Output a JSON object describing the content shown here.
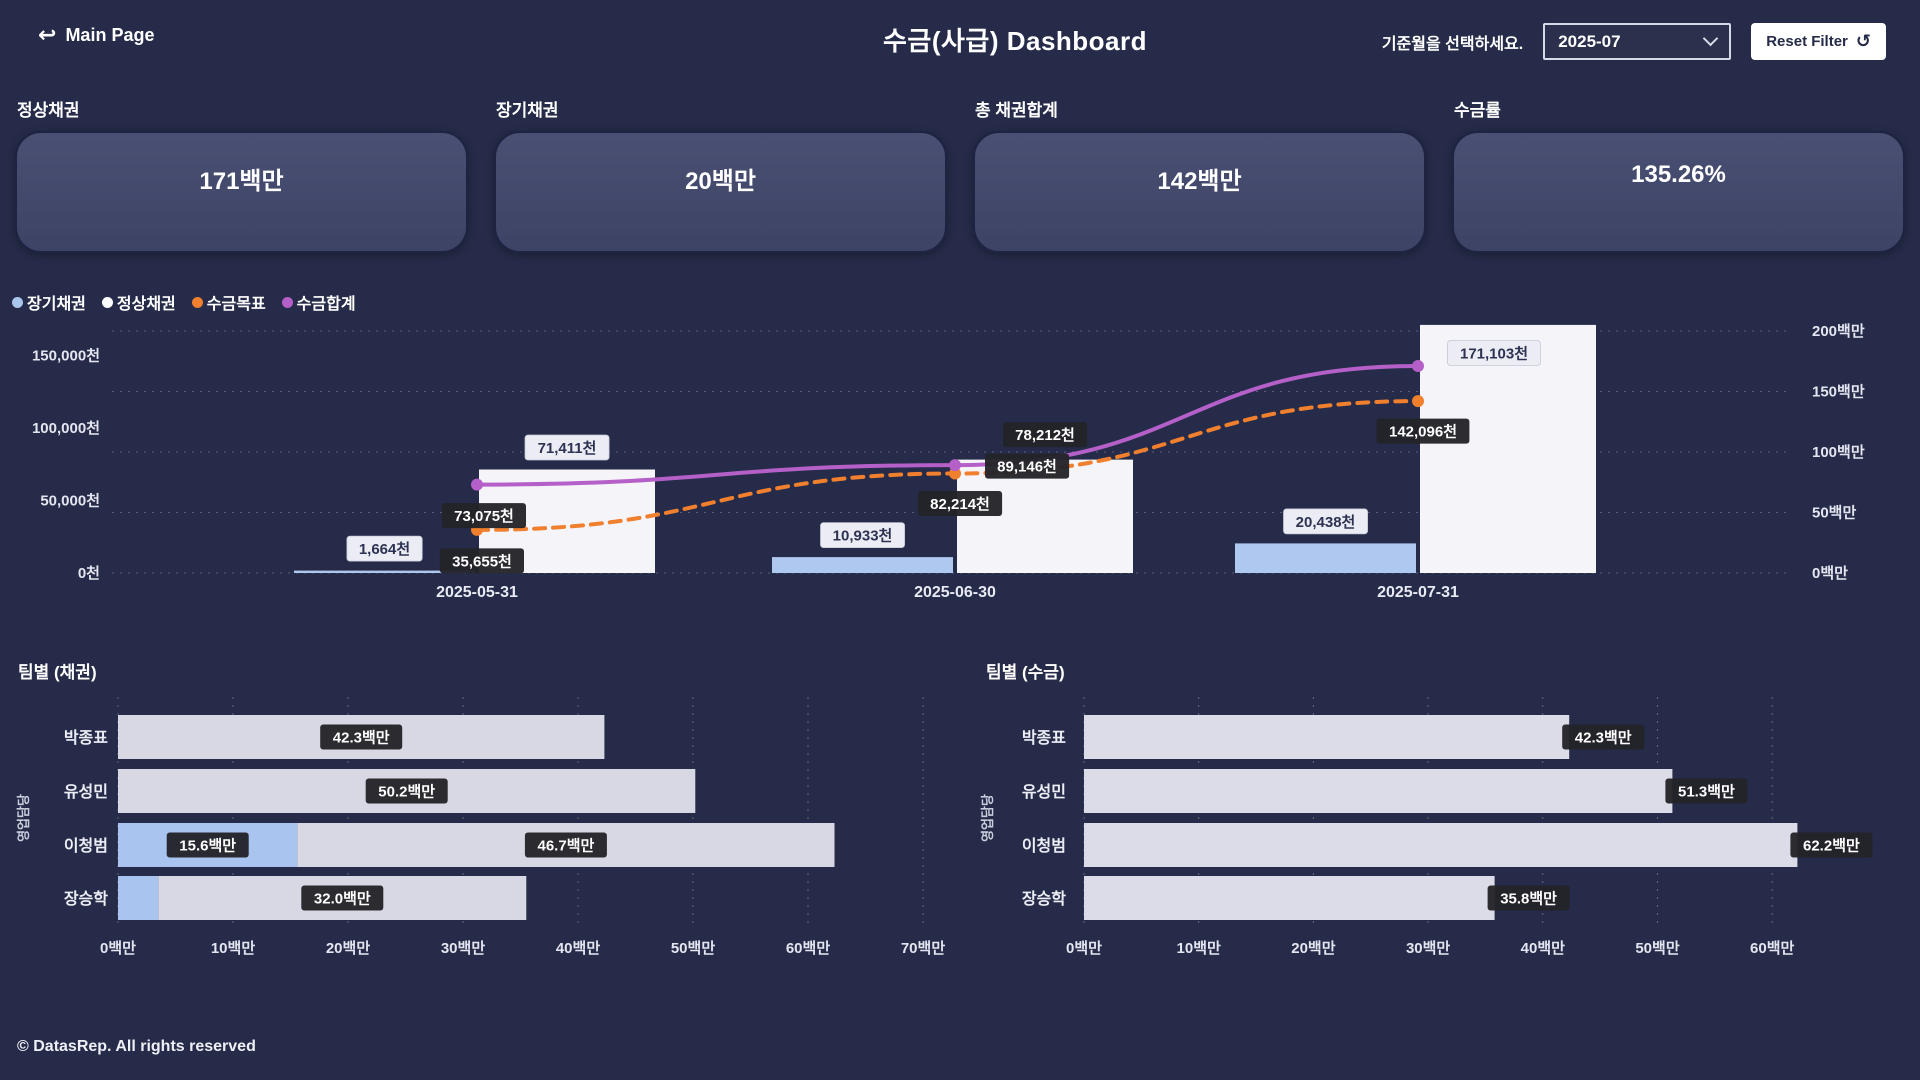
{
  "header": {
    "back_label": "Main Page",
    "title": "수금(사급) Dashboard",
    "filter_prompt": "기준월을 선택하세요.",
    "month_selector": {
      "value": "2025-07"
    },
    "reset_button": "Reset Filter"
  },
  "kpis": [
    {
      "label": "정상채권",
      "value": "171백만"
    },
    {
      "label": "장기채권",
      "value": "20백만"
    },
    {
      "label": "총 채권합계",
      "value": "142백만"
    },
    {
      "label": "수금률",
      "value": "135.26%"
    }
  ],
  "legend": [
    {
      "label": "장기채권",
      "color": "#a9c6ee"
    },
    {
      "label": "정상채권",
      "color": "#ffffff"
    },
    {
      "label": "수금목표",
      "color": "#f07f2e"
    },
    {
      "label": "수금합계",
      "color": "#b55fc8"
    }
  ],
  "chart_data": [
    {
      "type": "combo-bar-line",
      "categories": [
        "2025-05-31",
        "2025-06-30",
        "2025-07-31"
      ],
      "left_axis": {
        "unit": "천",
        "ticks": [
          0,
          50000,
          100000,
          150000
        ],
        "tick_labels": [
          "0천",
          "50,000천",
          "100,000천",
          "150,000천"
        ]
      },
      "right_axis": {
        "unit": "백만",
        "ticks": [
          0,
          50,
          100,
          150,
          200
        ],
        "tick_labels": [
          "0백만",
          "50백만",
          "100백만",
          "150백만",
          "200백만"
        ]
      },
      "series": [
        {
          "name": "장기채권",
          "kind": "bar",
          "axis": "left",
          "color": "#aec8f0",
          "values": [
            1664,
            10933,
            20438
          ],
          "data_labels": [
            "1,664천",
            "10,933천",
            "20,438천"
          ],
          "label_styles": [
            "light",
            "light",
            "light"
          ]
        },
        {
          "name": "정상채권",
          "kind": "bar",
          "axis": "left",
          "color": "#f4f4f9",
          "values": [
            71411,
            78212,
            171103
          ],
          "data_labels": [
            "71,411천",
            "78,212천",
            ""
          ],
          "label_styles": [
            "light",
            "dark",
            ""
          ]
        },
        {
          "name": "수금목표",
          "kind": "line",
          "dash": true,
          "axis": "right",
          "color": "#f07f2e",
          "values": [
            35655,
            82214,
            142096
          ],
          "data_labels": [
            "35,655천",
            "82,214천",
            "142,096천"
          ],
          "label_styles": [
            "dark",
            "dark",
            "dark"
          ]
        },
        {
          "name": "수금합계",
          "kind": "line",
          "dash": false,
          "axis": "right",
          "color": "#b55fc8",
          "values": [
            73075,
            89146,
            171103
          ],
          "data_labels": [
            "73,075천",
            "89,146천",
            "171,103천"
          ],
          "label_styles": [
            "dark",
            "dark",
            "light"
          ]
        }
      ]
    },
    {
      "type": "stacked-bar-horizontal",
      "title": "팀별 (채권)",
      "y_axis_title": "영업담당",
      "categories": [
        "박종표",
        "유성민",
        "이청범",
        "장승학"
      ],
      "series": [
        {
          "name": "장기채권",
          "color": "#a9c4ee",
          "values": [
            0,
            0,
            15.6,
            3.5
          ],
          "data_labels": [
            "",
            "",
            "15.6백만",
            ""
          ]
        },
        {
          "name": "정상채권",
          "color": "#d8d8e5",
          "values": [
            42.3,
            50.2,
            46.7,
            32.0
          ],
          "data_labels": [
            "42.3백만",
            "50.2백만",
            "46.7백만",
            "32.0백만"
          ]
        }
      ],
      "x_ticks": [
        0,
        10,
        20,
        30,
        40,
        50,
        60,
        70
      ],
      "x_tick_labels": [
        "0백만",
        "10백만",
        "20백만",
        "30백만",
        "40백만",
        "50백만",
        "60백만",
        "70백만"
      ],
      "unit": "백만"
    },
    {
      "type": "bar-horizontal",
      "title": "팀별 (수금)",
      "y_axis_title": "영업담당",
      "categories": [
        "박종표",
        "유성민",
        "이청범",
        "장승학"
      ],
      "series": [
        {
          "name": "수금",
          "color": "#dcdce8",
          "values": [
            42.3,
            51.3,
            62.2,
            35.8
          ],
          "data_labels": [
            "42.3백만",
            "51.3백만",
            "62.2백만",
            "35.8백만"
          ]
        }
      ],
      "x_ticks": [
        0,
        10,
        20,
        30,
        40,
        50,
        60
      ],
      "x_tick_labels": [
        "0백만",
        "10백만",
        "20백만",
        "30백만",
        "40백만",
        "50백만",
        "60백만"
      ],
      "unit": "백만"
    }
  ],
  "footer": "© DatasRep. All rights reserved"
}
